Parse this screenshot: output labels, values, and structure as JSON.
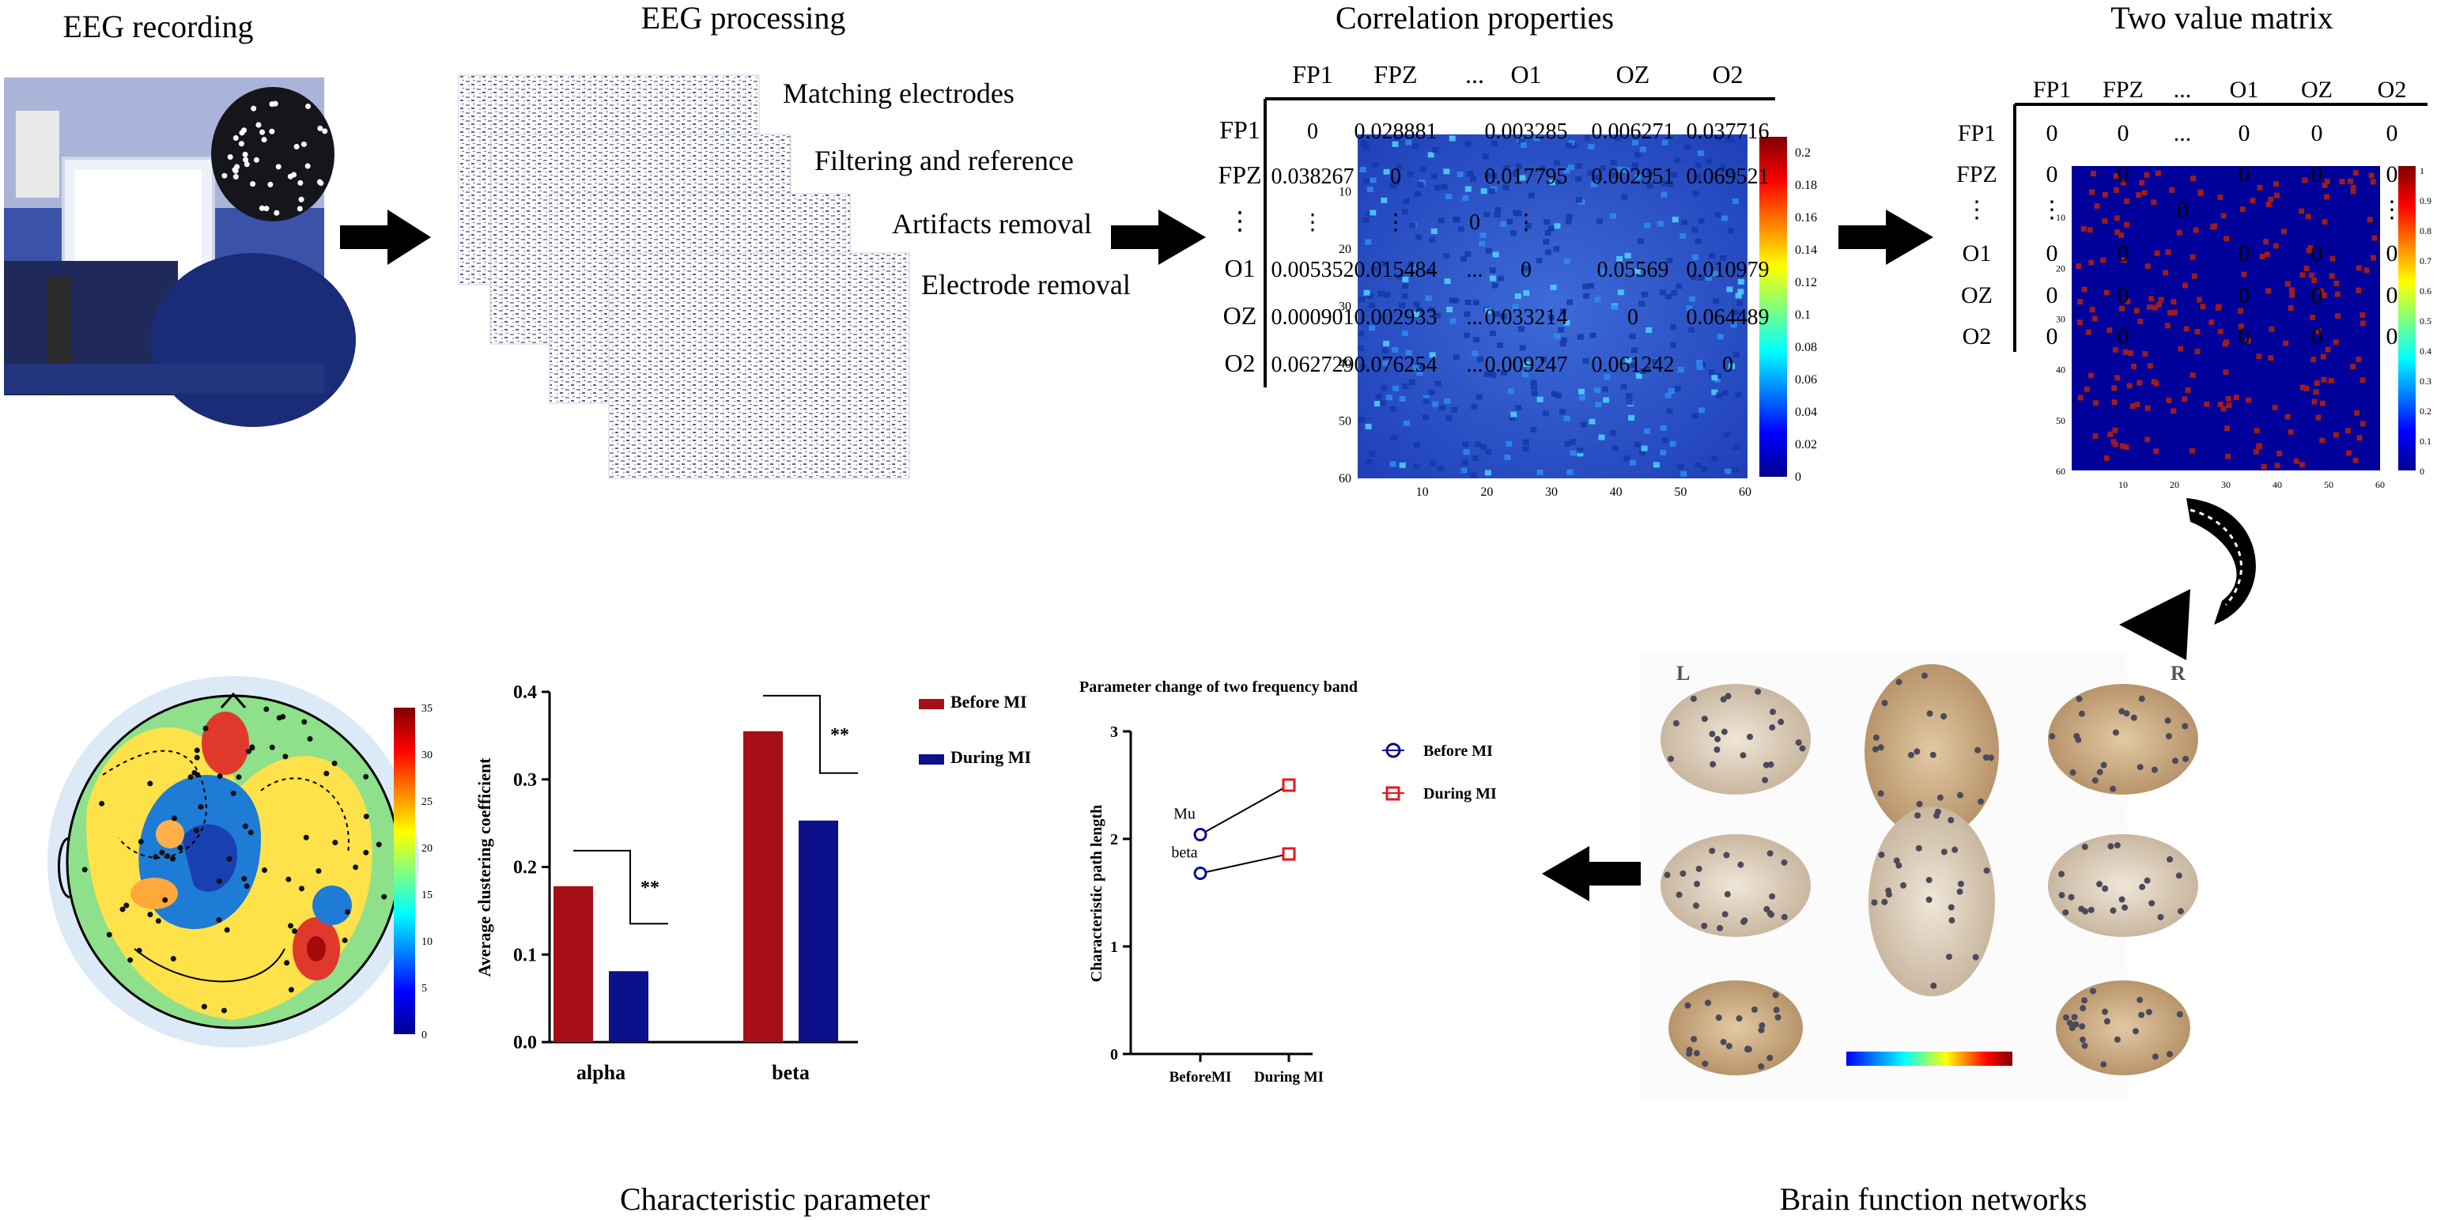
{
  "sections": {
    "eeg_recording": "EEG recording",
    "eeg_processing": "EEG processing",
    "correlation": "Correlation properties",
    "binary": "Two value matrix",
    "characteristic": "Characteristic parameter",
    "brain_networks": "Brain function networks"
  },
  "processing_steps": [
    "Matching electrodes",
    "Filtering and reference",
    "Artifacts removal",
    "Electrode removal"
  ],
  "corr_matrix": {
    "col_labels": [
      "FP1",
      "FPZ",
      "...",
      "O1",
      "OZ",
      "O2"
    ],
    "row_labels": [
      "FP1",
      "FPZ",
      "⋮",
      "O1",
      "OZ",
      "O2"
    ],
    "cells": [
      [
        "0",
        "0.028881",
        "",
        "0.003285",
        "0.006271",
        "0.037716"
      ],
      [
        "0.038267",
        "0",
        "",
        "0.017795",
        "0.002951",
        "0.069521"
      ],
      [
        "⋮",
        "⋮",
        "0",
        "⋮",
        "",
        ""
      ],
      [
        "0.005352",
        "0.015484",
        "...",
        "0",
        "0.05569",
        "0.010979"
      ],
      [
        "0.000901",
        "0.002933",
        "...",
        "0.033214",
        "0",
        "0.064489"
      ],
      [
        "0.062729",
        "0.076254",
        "...",
        "0.009247",
        "0.061242",
        "0"
      ]
    ],
    "heatmap_x_ticks": [
      "10",
      "20",
      "30",
      "40",
      "50",
      "60"
    ],
    "heatmap_y_ticks": [
      "10",
      "20",
      "30",
      "40",
      "50",
      "60"
    ],
    "colorbar_ticks": [
      "0",
      "0.02",
      "0.04",
      "0.06",
      "0.08",
      "0.1",
      "0.12",
      "0.14",
      "0.16",
      "0.18",
      "0.2"
    ]
  },
  "binary_matrix": {
    "col_labels": [
      "FP1",
      "FPZ",
      "...",
      "O1",
      "OZ",
      "O2"
    ],
    "row_labels": [
      "FP1",
      "FPZ",
      "⋮",
      "O1",
      "OZ",
      "O2"
    ],
    "cells": [
      [
        "0",
        "0",
        "...",
        "0",
        "0",
        "0"
      ],
      [
        "0",
        "0",
        "",
        "0",
        "0",
        "0"
      ],
      [
        "⋮",
        "",
        "0",
        "",
        "",
        "⋮"
      ],
      [
        "0",
        "0",
        "",
        "0",
        "0",
        "0"
      ],
      [
        "0",
        "0",
        "",
        "0",
        "0",
        "0"
      ],
      [
        "0",
        "0",
        "",
        "0",
        "0",
        "0"
      ]
    ],
    "heatmap_x_ticks": [
      "10",
      "20",
      "30",
      "40",
      "50",
      "60"
    ],
    "heatmap_y_ticks": [
      "10",
      "20",
      "30",
      "40",
      "50",
      "60"
    ],
    "colorbar_ticks": [
      "0",
      "0.1",
      "0.2",
      "0.3",
      "0.4",
      "0.5",
      "0.6",
      "0.7",
      "0.8",
      "0.9",
      "1"
    ]
  },
  "topomap_colorbar_ticks": [
    "0",
    "5",
    "10",
    "15",
    "20",
    "25",
    "30",
    "35"
  ],
  "brain_labels": {
    "left": "L",
    "right": "R"
  },
  "colors": {
    "before": "#a50f15",
    "during": "#0c108a",
    "line_before": "#0c108a",
    "line_during": "#e31a1c",
    "matrix_bg": "#00009a",
    "binary_dot": "#9b1c1c"
  },
  "chart_data": [
    {
      "type": "bar",
      "title": "",
      "xlabel": "",
      "ylabel": "Average clustering coefficient",
      "categories": [
        "alpha",
        "beta"
      ],
      "series": [
        {
          "name": "Before MI",
          "values": [
            0.178,
            0.355
          ]
        },
        {
          "name": "During MI",
          "values": [
            0.081,
            0.253
          ]
        }
      ],
      "ylim": [
        0,
        0.4
      ],
      "yticks": [
        "0.0",
        "0.1",
        "0.2",
        "0.3",
        "0.4"
      ],
      "significance": [
        "**",
        "**"
      ],
      "legend": "right"
    },
    {
      "type": "line",
      "title": "Parameter change  of two frequency band",
      "xlabel": "",
      "ylabel": "Characteristic path length",
      "categories": [
        "BeforeMI",
        "During MI"
      ],
      "series": [
        {
          "name": "Mu",
          "values": [
            2.04,
            2.5
          ]
        },
        {
          "name": "beta",
          "values": [
            1.68,
            1.86
          ]
        }
      ],
      "markers": {
        "BeforeMI": "Before MI",
        "During MI": "During MI"
      },
      "ylim": [
        0,
        3
      ],
      "yticks": [
        "0",
        "1",
        "2",
        "3"
      ],
      "legend": "right"
    }
  ]
}
